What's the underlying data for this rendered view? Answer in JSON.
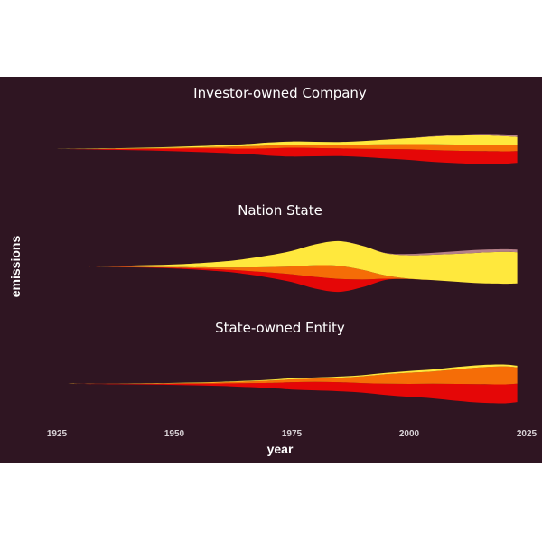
{
  "colors": {
    "background": "#2f1522",
    "page": "#ffffff",
    "layers": [
      "#e50707",
      "#f56d07",
      "#ffe83d",
      "#b58088"
    ]
  },
  "chart_data": {
    "type": "area",
    "style": "streamgraph",
    "xlabel": "year",
    "ylabel": "emissions",
    "xlim": [
      1925,
      2025
    ],
    "xticks": [
      1925,
      1950,
      1975,
      2000,
      2025
    ],
    "grid": false,
    "legend": "none",
    "layer_order_bottom_to_top": [
      "red",
      "orange",
      "yellow",
      "mauve"
    ],
    "facets": [
      {
        "title": "Investor-owned Company",
        "x": [
          1925,
          1935,
          1945,
          1955,
          1965,
          1970,
          1975,
          1980,
          1985,
          1990,
          1995,
          2000,
          2005,
          2010,
          2015,
          2020,
          2023
        ],
        "series": [
          {
            "values": [
              0.0,
              0.1,
              0.3,
              0.6,
              0.9,
              1.2,
              1.5,
              1.4,
              1.3,
              1.4,
              1.6,
              1.8,
              2.0,
              2.1,
              2.2,
              2.1,
              2.0
            ]
          },
          {
            "values": [
              0.0,
              0.05,
              0.1,
              0.2,
              0.4,
              0.5,
              0.5,
              0.55,
              0.6,
              0.7,
              0.8,
              0.9,
              1.0,
              1.05,
              1.1,
              1.1,
              1.0
            ]
          },
          {
            "values": [
              0.0,
              0.05,
              0.1,
              0.2,
              0.35,
              0.5,
              0.55,
              0.5,
              0.5,
              0.6,
              0.8,
              1.0,
              1.3,
              1.5,
              1.6,
              1.5,
              1.4
            ]
          },
          {
            "values": [
              0,
              0,
              0,
              0,
              0,
              0,
              0,
              0,
              0,
              0,
              0,
              0,
              0.05,
              0.12,
              0.2,
              0.3,
              0.3
            ]
          }
        ]
      },
      {
        "title": "Nation State",
        "x": [
          1930,
          1940,
          1950,
          1960,
          1965,
          1970,
          1975,
          1980,
          1985,
          1990,
          1995,
          2000,
          2005,
          2010,
          2015,
          2020,
          2023
        ],
        "series": [
          {
            "values": [
              0.0,
              0.05,
              0.1,
              0.3,
              0.5,
              0.8,
              1.2,
              1.8,
              2.0,
              1.2,
              0.2,
              0.0,
              0,
              0,
              0,
              0,
              0
            ]
          },
          {
            "values": [
              0.0,
              0.05,
              0.1,
              0.3,
              0.5,
              0.8,
              1.2,
              1.8,
              2.0,
              1.5,
              0.5,
              0.05,
              0,
              0,
              0,
              0,
              0
            ]
          },
          {
            "values": [
              0.0,
              0.15,
              0.4,
              0.9,
              1.3,
              1.8,
              2.4,
              3.2,
              3.8,
              3.7,
              3.4,
              3.6,
              3.9,
              4.3,
              4.7,
              4.9,
              4.8
            ]
          },
          {
            "values": [
              0,
              0,
              0,
              0,
              0,
              0,
              0,
              0,
              0,
              0,
              0.05,
              0.2,
              0.3,
              0.4,
              0.45,
              0.4,
              0.4
            ]
          }
        ]
      },
      {
        "title": "State-owned Entity",
        "x": [
          1927,
          1940,
          1950,
          1960,
          1970,
          1975,
          1980,
          1985,
          1990,
          1995,
          2000,
          2005,
          2010,
          2015,
          2020,
          2023
        ],
        "series": [
          {
            "values": [
              0.0,
              0.1,
              0.2,
              0.45,
              0.9,
              1.3,
              1.5,
              1.6,
              1.7,
              2.0,
              2.3,
              2.6,
              3.0,
              3.3,
              3.4,
              3.3
            ]
          },
          {
            "values": [
              0.0,
              0.05,
              0.1,
              0.2,
              0.4,
              0.5,
              0.6,
              0.8,
              1.2,
              1.7,
              2.0,
              2.2,
              2.6,
              3.0,
              3.2,
              2.9
            ]
          },
          {
            "values": [
              0.0,
              0.02,
              0.05,
              0.1,
              0.15,
              0.2,
              0.2,
              0.2,
              0.2,
              0.25,
              0.3,
              0.35,
              0.4,
              0.4,
              0.35,
              0.3
            ]
          },
          {
            "values": [
              0,
              0,
              0,
              0,
              0,
              0,
              0,
              0,
              0,
              0,
              0,
              0,
              0,
              0,
              0,
              0
            ]
          }
        ]
      }
    ]
  }
}
